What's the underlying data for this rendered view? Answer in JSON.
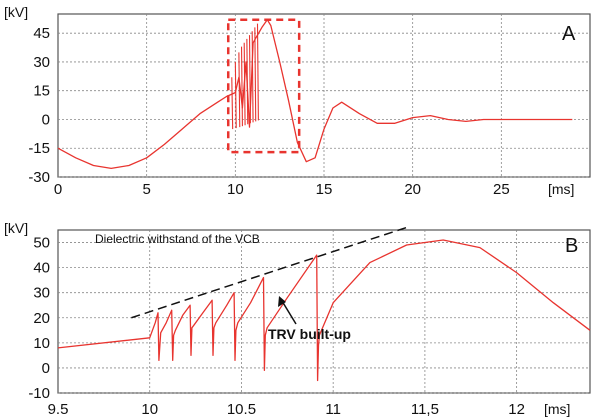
{
  "chart_data": [
    {
      "type": "line",
      "panel": "A",
      "ylabel": "[kV]",
      "xlabel": "[ms]",
      "xlim": [
        0,
        30
      ],
      "ylim": [
        -30,
        55
      ],
      "xticks": [
        0,
        5,
        10,
        15,
        20,
        25
      ],
      "yticks": [
        -30,
        -15,
        0,
        15,
        30,
        45
      ],
      "grid": true,
      "colors": {
        "series": "#e8342f",
        "box": "#e8342f"
      },
      "annotations": [
        "dashed highlight box around 9.5–13.5 ms"
      ],
      "series": [
        {
          "x": [
            0,
            1,
            2,
            3,
            4,
            5,
            6,
            7,
            8,
            9,
            9.5,
            10,
            10.2,
            10.4,
            10.6,
            10.8,
            11,
            11.5,
            11.8,
            12,
            12.5,
            13,
            13.5,
            14,
            14.5,
            15,
            15.5,
            16,
            17,
            18,
            19,
            20,
            21,
            22,
            23,
            24,
            25,
            26,
            27,
            28,
            29
          ],
          "y": [
            -15,
            -20,
            -24,
            -25.5,
            -24,
            -20,
            -13,
            -5,
            3,
            9,
            12,
            14,
            22,
            6,
            30,
            -4,
            40,
            48,
            52,
            49,
            30,
            10,
            -12,
            -22,
            -20,
            -5,
            6,
            9,
            3,
            -2,
            -2,
            1,
            2,
            0,
            -1,
            0,
            0,
            0,
            0,
            0,
            0
          ]
        }
      ]
    },
    {
      "type": "line",
      "panel": "B",
      "ylabel": "[kV]",
      "xlabel": "[ms]",
      "xlim": [
        9.5,
        12.4
      ],
      "ylim": [
        -10,
        55
      ],
      "xtick_labels": [
        "9.5",
        "10",
        "10.5",
        "11",
        "11,5",
        "12"
      ],
      "xticks": [
        9.5,
        10,
        10.5,
        11,
        11.5,
        12
      ],
      "yticks": [
        -10,
        0,
        10,
        20,
        30,
        40,
        50
      ],
      "grid": true,
      "colors": {
        "series": "#e8342f",
        "dashed": "#111111"
      },
      "annotations": [
        "Dielectric withstand  of the VCB",
        "TRV built-up"
      ],
      "dielectric_line": {
        "x": [
          9.9,
          11.4
        ],
        "y": [
          20,
          56
        ]
      },
      "series": [
        {
          "x": [
            9.5,
            10.0,
            10.03,
            10.045,
            10.05,
            10.06,
            10.09,
            10.12,
            10.125,
            10.13,
            10.14,
            10.18,
            10.22,
            10.225,
            10.23,
            10.24,
            10.29,
            10.34,
            10.345,
            10.35,
            10.36,
            10.42,
            10.46,
            10.465,
            10.47,
            10.48,
            10.55,
            10.62,
            10.625,
            10.63,
            10.64,
            10.75,
            10.91,
            10.915,
            10.92,
            10.925,
            11.0,
            11.2,
            11.4,
            11.6,
            11.8,
            12.0,
            12.2,
            12.4
          ],
          "y": [
            8,
            12,
            18,
            22,
            3,
            14,
            18,
            23,
            3,
            13,
            15,
            21,
            25,
            5,
            16,
            17,
            22,
            27,
            5,
            16,
            18,
            25,
            30,
            3,
            15,
            18,
            26,
            36,
            -1,
            13,
            16,
            28,
            45,
            -5,
            9,
            13,
            26,
            42,
            49,
            51,
            48,
            38,
            26,
            15
          ]
        }
      ]
    }
  ]
}
